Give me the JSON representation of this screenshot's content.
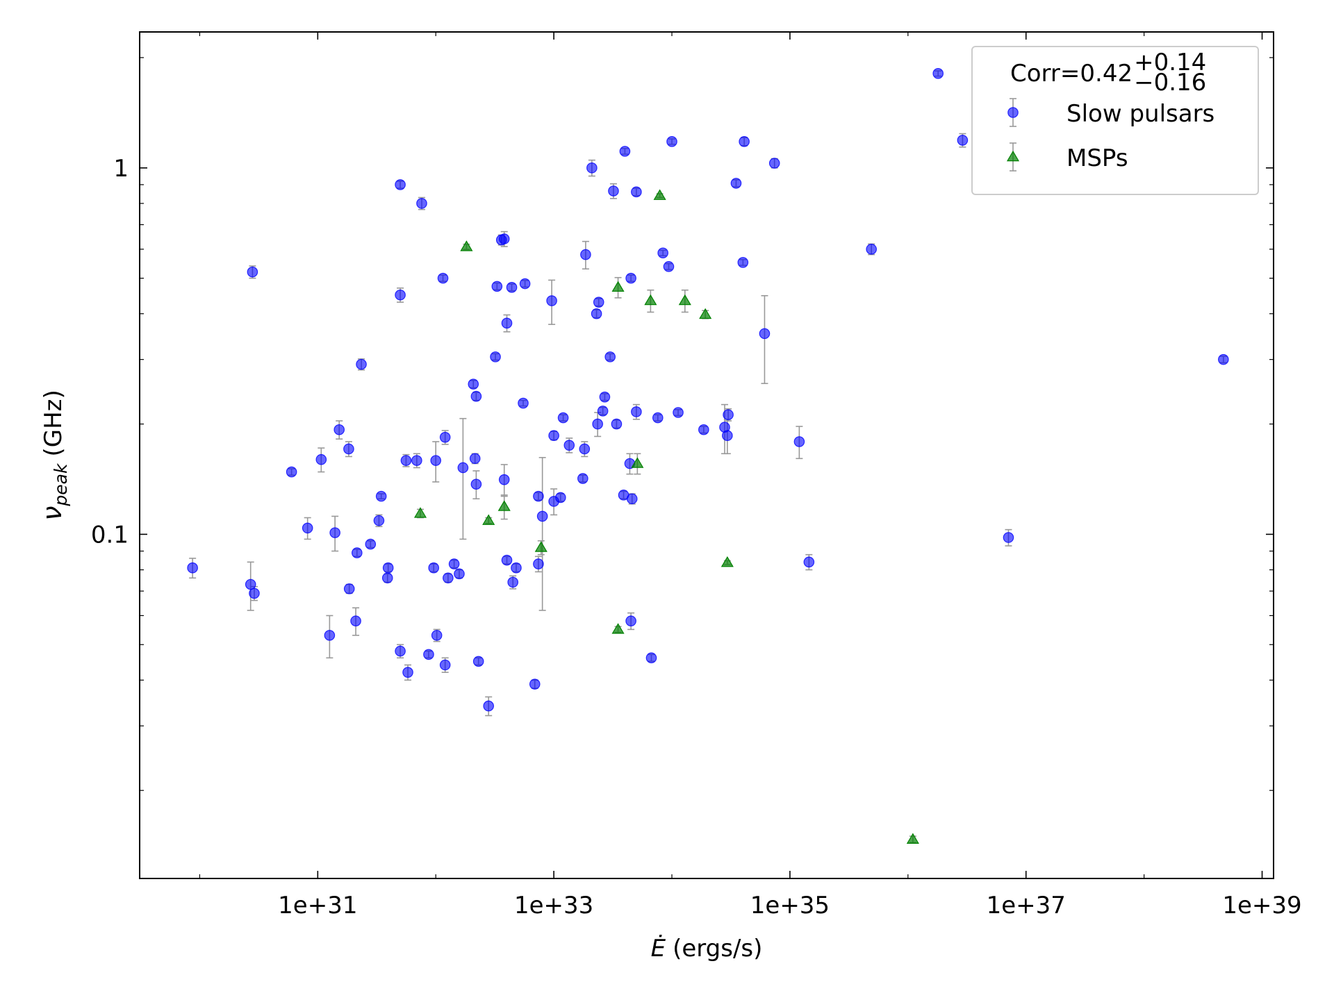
{
  "chart_data": {
    "type": "scatter",
    "xlabel": {
      "symbol": "Ė",
      "unit": "(ergs/s)"
    },
    "ylabel": {
      "symbol": "ν",
      "sub": "peak",
      "unit": "(GHz)"
    },
    "xlog": true,
    "ylog": true,
    "xlim": [
      3.1e+29,
      1.25e+39
    ],
    "ylim": [
      0.0115,
      2.35
    ],
    "xticks": [
      {
        "value": 1e+31,
        "label": "1e+31"
      },
      {
        "value": 1e+33,
        "label": "1e+33"
      },
      {
        "value": 1e+35,
        "label": "1e+35"
      },
      {
        "value": 1e+37,
        "label": "1e+37"
      },
      {
        "value": 1e+39,
        "label": "1e+39"
      }
    ],
    "xminorticks": [
      1e+30,
      1e+32,
      1e+34,
      1e+36,
      1e+38
    ],
    "yticks": [
      0.1,
      1
    ],
    "yminorticks": [
      0.02,
      0.03,
      0.04,
      0.05,
      0.06,
      0.07,
      0.08,
      0.09,
      0.2,
      0.3,
      0.4,
      0.5,
      0.6,
      0.7,
      0.8,
      0.9,
      2
    ],
    "legend": {
      "loc": "upper right",
      "title": "Corr=0.42",
      "title_sup": "+0.14",
      "title_sub": "−0.16"
    },
    "errorbar_color": "#999999",
    "series": [
      {
        "name": "Slow pulsars",
        "color": "#0000ff",
        "marker": "circle",
        "x": [
          8.7e+29,
          2.7e+30,
          2.9e+30,
          2.8e+30,
          6e+30,
          8.2e+30,
          1.07e+31,
          1.26e+31,
          1.4e+31,
          1.52e+31,
          1.83e+31,
          1.85e+31,
          2.1e+31,
          2.15e+31,
          2.34e+31,
          2.8e+31,
          3.3e+31,
          3.45e+31,
          3.9e+31,
          3.95e+31,
          5e+31,
          5e+31,
          5e+31,
          5.6e+31,
          5.8e+31,
          6.9e+31,
          7.6e+31,
          8.7e+31,
          9.6e+31,
          1e+32,
          1.02e+32,
          1.15e+32,
          1.2e+32,
          1.2e+32,
          1.27e+32,
          1.43e+32,
          1.58e+32,
          1.7e+32,
          2.08e+32,
          2.15e+32,
          2.2e+32,
          2.2e+32,
          2.3e+32,
          2.8e+32,
          3.2e+32,
          3.3e+32,
          3.6e+32,
          3.8e+32,
          3.8e+32,
          4e+32,
          4e+32,
          4.4e+32,
          4.5e+32,
          4.8e+32,
          5.5e+32,
          5.7e+32,
          6.9e+32,
          7.4e+32,
          7.4e+32,
          8e+32,
          9.6e+32,
          1e+33,
          1e+33,
          1.14e+33,
          1.2e+33,
          1.35e+33,
          1.76e+33,
          1.82e+33,
          1.86e+33,
          2.1e+33,
          2.3e+33,
          2.35e+33,
          2.4e+33,
          2.6e+33,
          2.7e+33,
          3e+33,
          3.2e+33,
          3.4e+33,
          3.9e+33,
          4e+33,
          4.4e+33,
          4.5e+33,
          4.5e+33,
          4.6e+33,
          5e+33,
          5e+33,
          6.7e+33,
          7.6e+33,
          8.4e+33,
          9.4e+33,
          1e+34,
          1.13e+34,
          1.86e+34,
          2.8e+34,
          2.95e+34,
          3e+34,
          3.5e+34,
          4e+34,
          4.1e+34,
          6.1e+34,
          7.4e+34,
          1.2e+35,
          1.45e+35,
          4.9e+35,
          1.8e+36,
          2.9e+36,
          7.1e+36,
          4.7e+38
        ],
        "values": [
          0.081,
          0.073,
          0.069,
          0.52,
          0.148,
          0.104,
          0.16,
          0.053,
          0.101,
          0.193,
          0.171,
          0.071,
          0.058,
          0.089,
          0.291,
          0.094,
          0.109,
          0.127,
          0.076,
          0.081,
          0.9,
          0.45,
          0.048,
          0.159,
          0.042,
          0.159,
          0.8,
          0.047,
          0.081,
          0.159,
          0.053,
          0.5,
          0.044,
          0.184,
          0.076,
          0.083,
          0.078,
          0.152,
          0.257,
          0.161,
          0.238,
          0.137,
          0.045,
          0.034,
          0.305,
          0.475,
          0.636,
          0.64,
          0.141,
          0.377,
          0.085,
          0.472,
          0.074,
          0.081,
          0.228,
          0.483,
          0.039,
          0.127,
          0.083,
          0.112,
          0.434,
          0.186,
          0.123,
          0.126,
          0.208,
          0.175,
          0.142,
          0.171,
          0.58,
          1.0,
          0.4,
          0.2,
          0.43,
          0.217,
          0.237,
          0.305,
          0.865,
          0.2,
          0.128,
          1.11,
          0.156,
          0.5,
          0.058,
          0.125,
          0.216,
          0.86,
          0.046,
          0.208,
          0.586,
          0.538,
          1.18,
          0.215,
          0.193,
          0.196,
          0.186,
          0.212,
          0.908,
          0.552,
          1.18,
          0.353,
          1.03,
          0.179,
          0.084,
          0.6,
          1.81,
          1.19,
          0.098,
          0.3
        ],
        "errors": [
          0.005,
          0.011,
          0.003,
          0.02,
          0.003,
          0.007,
          0.012,
          0.007,
          0.011,
          0.011,
          0.008,
          0.002,
          0.005,
          0.002,
          0.01,
          0.002,
          0.004,
          0.002,
          0.002,
          0.002,
          0.02,
          0.02,
          0.002,
          0.006,
          0.002,
          0.007,
          0.03,
          0.001,
          0.002,
          0.02,
          0.002,
          0.01,
          0.002,
          0.008,
          0.002,
          0.002,
          0.002,
          0.055,
          0.006,
          0.005,
          0.006,
          0.012,
          0.001,
          0.002,
          0.006,
          0.01,
          0.02,
          0.03,
          0.014,
          0.02,
          0.002,
          0.01,
          0.003,
          0.002,
          0.004,
          0.01,
          0.001,
          0.003,
          0.004,
          0.05,
          0.06,
          0.005,
          0.01,
          0.003,
          0.004,
          0.008,
          0.003,
          0.008,
          0.05,
          0.05,
          0.01,
          0.015,
          0.01,
          0.005,
          0.005,
          0.006,
          0.04,
          0.005,
          0.003,
          0.02,
          0.01,
          0.01,
          0.003,
          0.004,
          0.01,
          0.02,
          0.001,
          0.004,
          0.01,
          0.01,
          0.02,
          0.004,
          0.004,
          0.03,
          0.02,
          0.008,
          0.02,
          0.01,
          0.03,
          0.095,
          0.03,
          0.018,
          0.004,
          0.02,
          0.03,
          0.05,
          0.005,
          0.006
        ]
      },
      {
        "name": "MSPs",
        "color": "#008000",
        "marker": "triangle",
        "x": [
          1.82e+32,
          7.4e+31,
          2.8e+32,
          3.8e+32,
          7.8e+32,
          3.5e+33,
          3.5e+33,
          5.1e+33,
          6.6e+33,
          7.9e+33,
          1.29e+34,
          1.92e+34,
          2.95e+34,
          1.1e+36
        ],
        "values": [
          0.609,
          0.114,
          0.109,
          0.119,
          0.092,
          0.055,
          0.472,
          0.156,
          0.434,
          0.84,
          0.434,
          0.398,
          0.0837,
          0.0147
        ],
        "errors": [
          0.01,
          0.003,
          0.002,
          0.009,
          0.004,
          0.001,
          0.03,
          0.01,
          0.03,
          0.01,
          0.03,
          0.01,
          0.001,
          0.0003
        ]
      }
    ]
  }
}
